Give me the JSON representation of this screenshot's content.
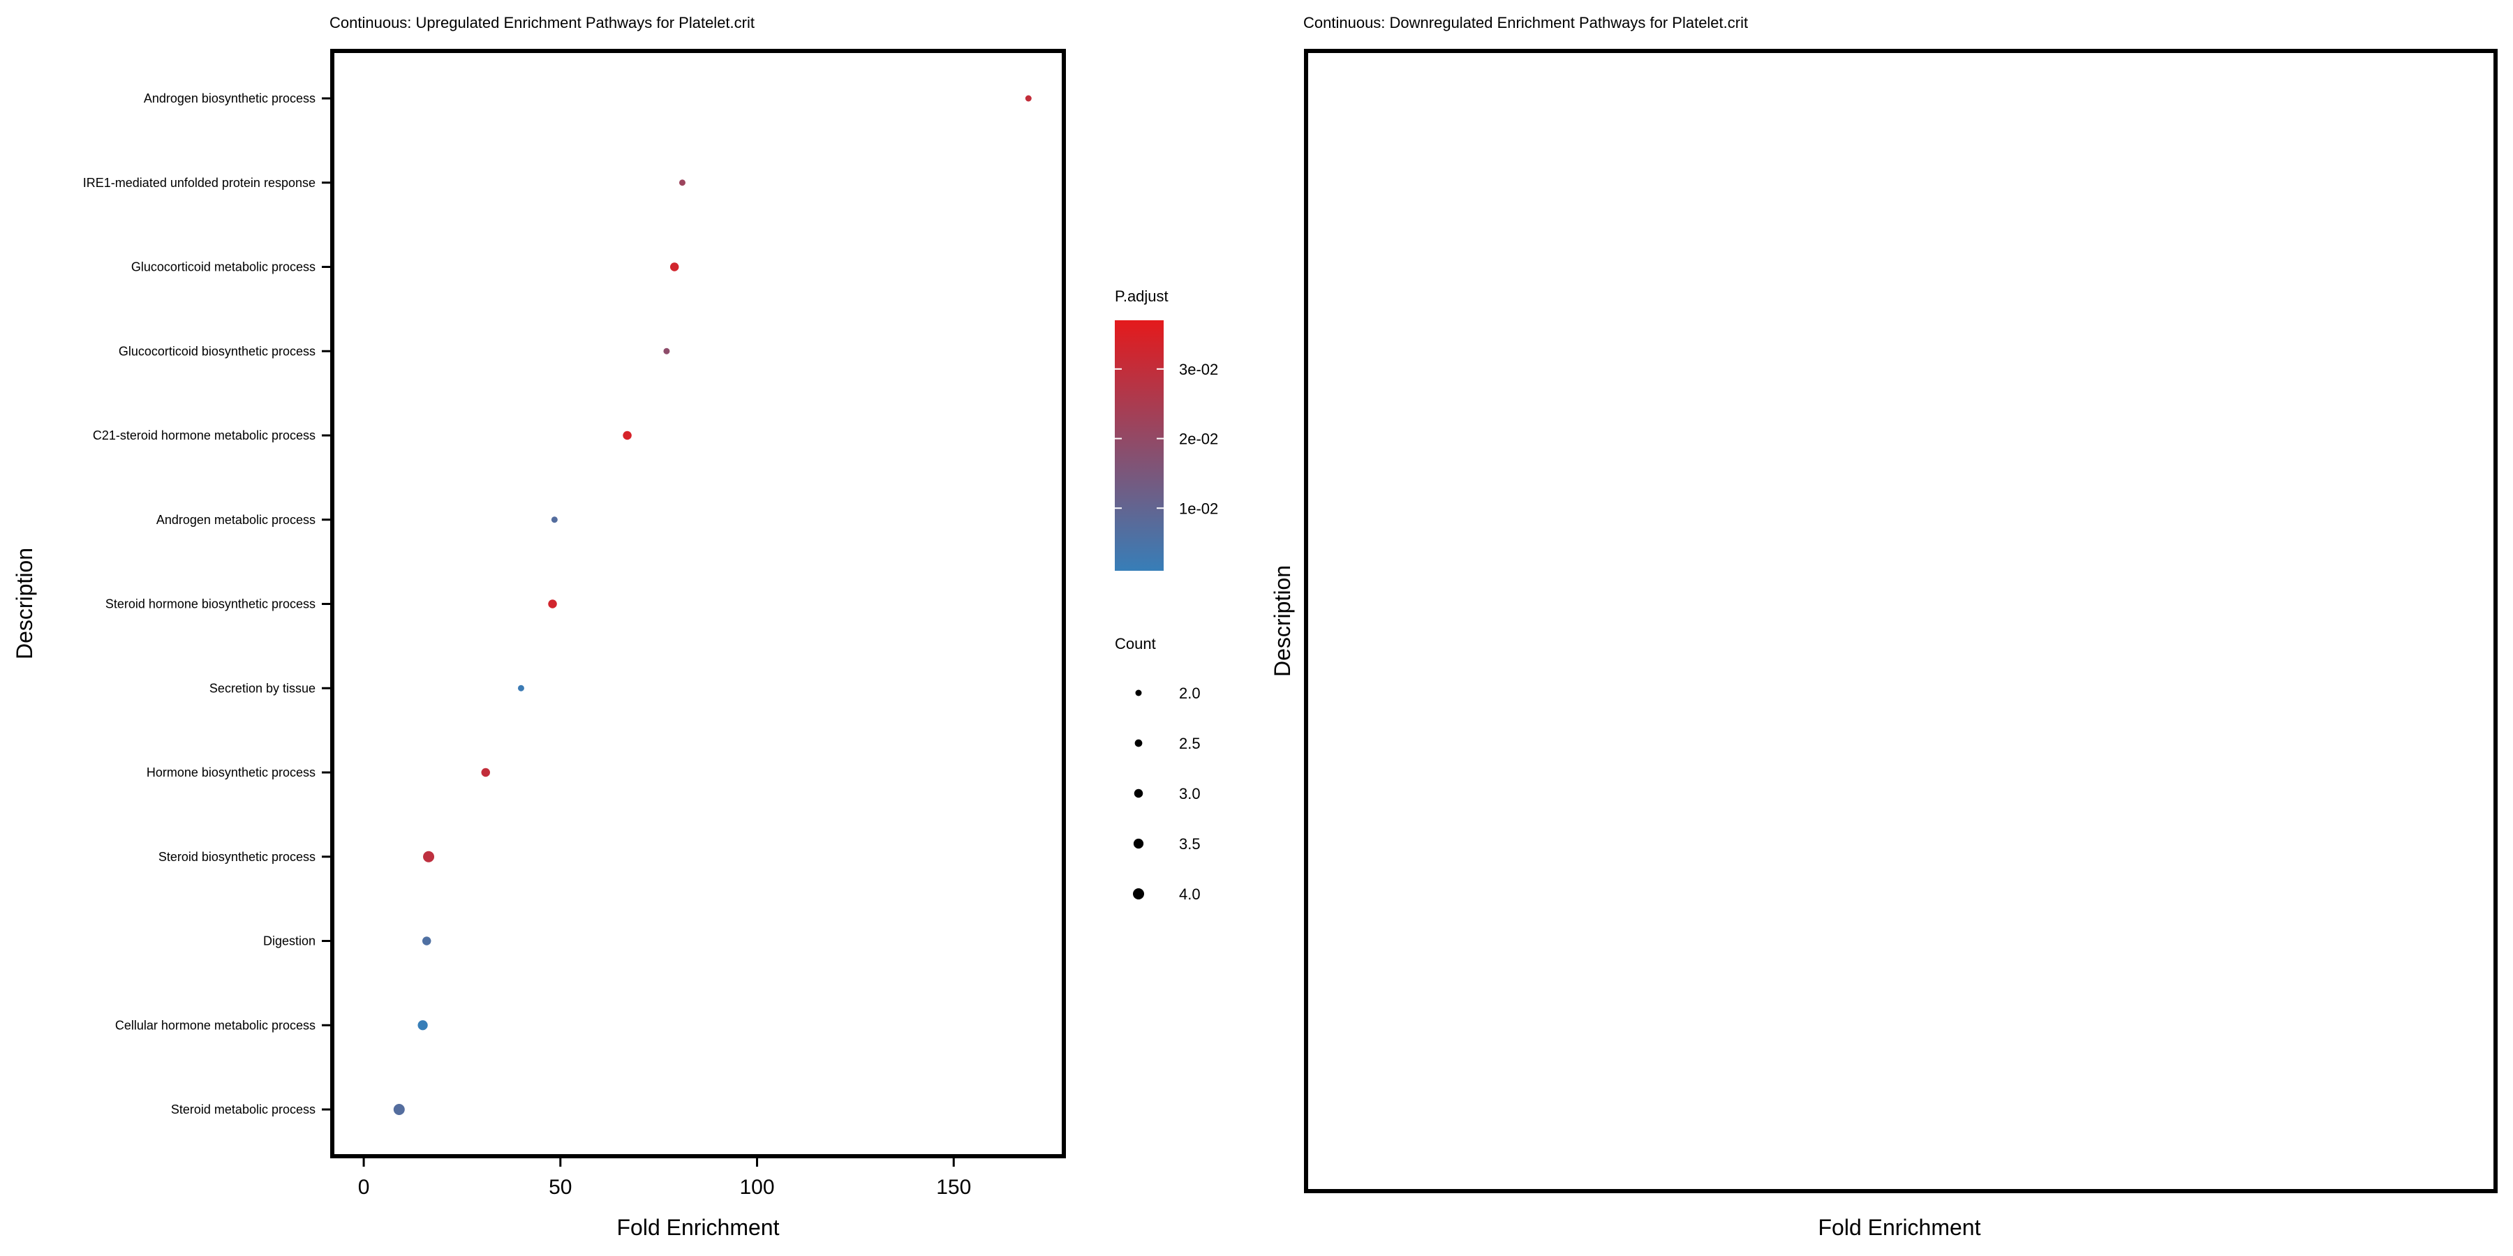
{
  "chart_data": [
    {
      "type": "scatter",
      "title": "Continuous: Upregulated Enrichment Pathways for Platelet.crit",
      "xlabel": "Fold Enrichment",
      "ylabel": "Description",
      "xlim": [
        -8,
        178
      ],
      "x_ticks": [
        0,
        50,
        100,
        150
      ],
      "x_tick_labels": [
        "0",
        "50",
        "100",
        "150"
      ],
      "categories": [
        "Androgen biosynthetic process",
        "IRE1-mediated unfolded protein response",
        "Glucocorticoid metabolic process",
        "Glucocorticoid biosynthetic process",
        "C21-steroid hormone metabolic process",
        "Androgen metabolic process",
        "Steroid hormone biosynthetic process",
        "Secretion by tissue",
        "Hormone biosynthetic process",
        "Steroid biosynthetic process",
        "Digestion",
        "Cellular hormone metabolic process",
        "Steroid metabolic process"
      ],
      "points": [
        {
          "description": "Androgen biosynthetic process",
          "fold_enrichment": 169,
          "p_adjust": 0.008,
          "count": 2
        },
        {
          "description": "IRE1-mediated unfolded protein response",
          "fold_enrichment": 81,
          "p_adjust": 0.016,
          "count": 2
        },
        {
          "description": "Glucocorticoid metabolic process",
          "fold_enrichment": 79,
          "p_adjust": 0.005,
          "count": 3
        },
        {
          "description": "Glucocorticoid biosynthetic process",
          "fold_enrichment": 77,
          "p_adjust": 0.019,
          "count": 2
        },
        {
          "description": "C21-steroid hormone metabolic process",
          "fold_enrichment": 67,
          "p_adjust": 0.004,
          "count": 3
        },
        {
          "description": "Androgen metabolic process",
          "fold_enrichment": 48.5,
          "p_adjust": 0.031,
          "count": 2
        },
        {
          "description": "Steroid hormone biosynthetic process",
          "fold_enrichment": 48,
          "p_adjust": 0.005,
          "count": 3
        },
        {
          "description": "Secretion by tissue",
          "fold_enrichment": 40,
          "p_adjust": 0.036,
          "count": 2
        },
        {
          "description": "Hormone biosynthetic process",
          "fold_enrichment": 31,
          "p_adjust": 0.008,
          "count": 3
        },
        {
          "description": "Steroid biosynthetic process",
          "fold_enrichment": 16.5,
          "p_adjust": 0.009,
          "count": 4
        },
        {
          "description": "Digestion",
          "fold_enrichment": 16,
          "p_adjust": 0.032,
          "count": 3
        },
        {
          "description": "Cellular hormone metabolic process",
          "fold_enrichment": 15,
          "p_adjust": 0.037,
          "count": 3.5
        },
        {
          "description": "Steroid metabolic process",
          "fold_enrichment": 9,
          "p_adjust": 0.031,
          "count": 4
        }
      ],
      "grid": false
    },
    {
      "type": "scatter",
      "title": "Continuous: Downregulated Enrichment Pathways for Platelet.crit",
      "xlabel": "Fold Enrichment",
      "ylabel": "Description",
      "points": [],
      "grid": false
    }
  ],
  "legend": {
    "placement": "between panels",
    "color": {
      "title": "P.adjust",
      "low_color": "#e41a1c",
      "high_color": "#377eb8",
      "range": [
        0.001,
        0.037
      ],
      "breaks": [
        0.01,
        0.02,
        0.03
      ],
      "labels": [
        "1e-02",
        "2e-02",
        "3e-02"
      ]
    },
    "size": {
      "title": "Count",
      "values": [
        2.0,
        2.5,
        3.0,
        3.5,
        4.0
      ],
      "labels": [
        "2.0",
        "2.5",
        "3.0",
        "3.5",
        "4.0"
      ]
    }
  }
}
